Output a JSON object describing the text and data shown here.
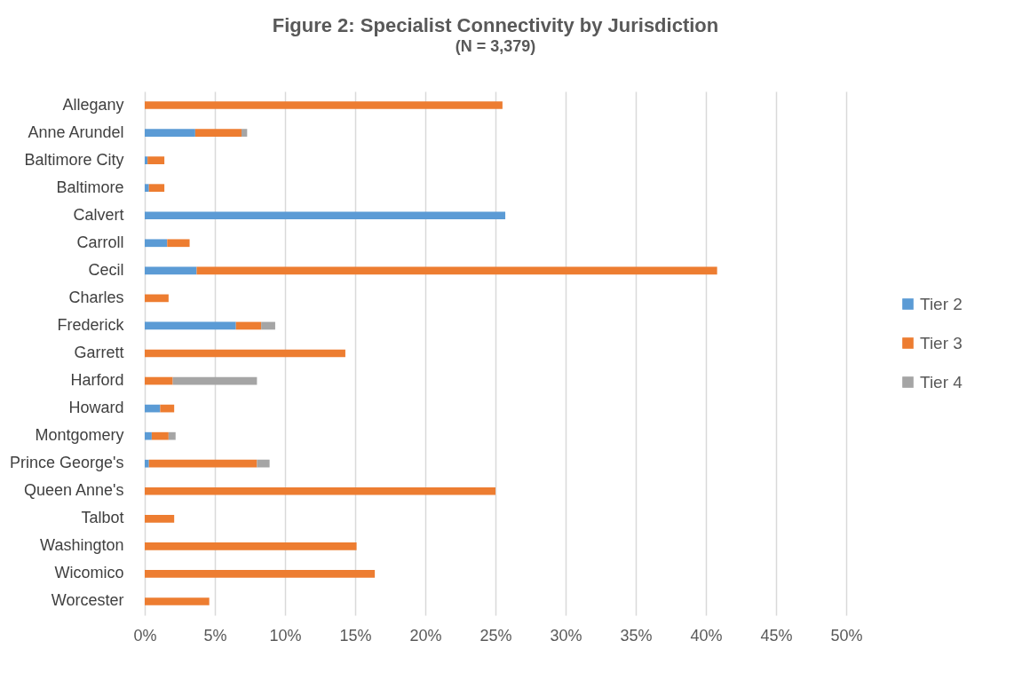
{
  "chart_data": {
    "type": "bar",
    "orientation": "horizontal",
    "stacked": true,
    "title": "Figure 2: Specialist Connectivity by Jurisdiction",
    "subtitle": "(N = 3,379)",
    "categories": [
      "Allegany",
      "Anne Arundel",
      "Baltimore City",
      "Baltimore",
      "Calvert",
      "Carroll",
      "Cecil",
      "Charles",
      "Frederick",
      "Garrett",
      "Harford",
      "Howard",
      "Montgomery",
      "Prince George's",
      "Queen Anne's",
      "Talbot",
      "Washington",
      "Wicomico",
      "Worcester"
    ],
    "series": [
      {
        "name": "Tier 2",
        "color": "#5b9bd5",
        "values": [
          null,
          3.6,
          0.2,
          0.3,
          25.7,
          1.6,
          3.7,
          null,
          6.5,
          null,
          null,
          1.1,
          0.5,
          0.3,
          null,
          null,
          null,
          null,
          null
        ]
      },
      {
        "name": "Tier 3",
        "color": "#ed7d31",
        "values": [
          25.5,
          3.3,
          1.2,
          1.1,
          null,
          1.6,
          37.1,
          1.7,
          1.8,
          14.3,
          2.0,
          1.0,
          1.2,
          7.7,
          25.0,
          2.1,
          15.1,
          16.4,
          4.6
        ]
      },
      {
        "name": "Tier 4",
        "color": "#a5a5a5",
        "values": [
          null,
          0.4,
          null,
          null,
          null,
          null,
          null,
          null,
          1.0,
          null,
          6.0,
          null,
          0.5,
          0.9,
          null,
          null,
          null,
          null,
          null
        ]
      }
    ],
    "xlim": [
      0,
      50
    ],
    "xticks": [
      {
        "value": 0,
        "label": "0%"
      },
      {
        "value": 5,
        "label": "5%"
      },
      {
        "value": 10,
        "label": "10%"
      },
      {
        "value": 15,
        "label": "15%"
      },
      {
        "value": 20,
        "label": "20%"
      },
      {
        "value": 25,
        "label": "25%"
      },
      {
        "value": 30,
        "label": "30%"
      },
      {
        "value": 35,
        "label": "35%"
      },
      {
        "value": 40,
        "label": "40%"
      },
      {
        "value": 45,
        "label": "45%"
      },
      {
        "value": 50,
        "label": "50%"
      }
    ],
    "grid": "x",
    "legend": "right"
  }
}
